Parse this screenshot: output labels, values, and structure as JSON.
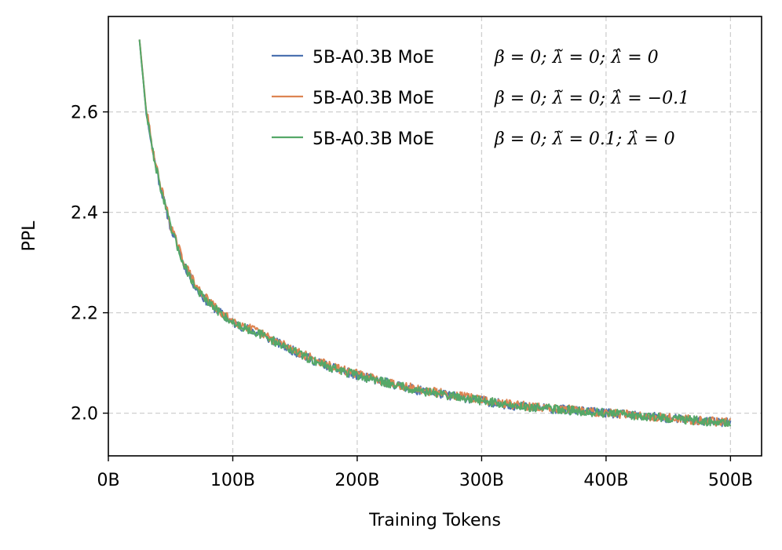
{
  "chart_data": {
    "type": "line",
    "title": "",
    "xlabel": "Training Tokens",
    "ylabel": "PPL",
    "xlim": [
      0,
      525
    ],
    "ylim": [
      1.915,
      2.79
    ],
    "xticks": [
      0,
      100,
      200,
      300,
      400,
      500
    ],
    "xtick_labels": [
      "0B",
      "100B",
      "200B",
      "300B",
      "400B",
      "500B"
    ],
    "yticks": [
      2.0,
      2.2,
      2.4,
      2.6
    ],
    "ytick_labels": [
      "2.0",
      "2.2",
      "2.4",
      "2.6"
    ],
    "grid": true,
    "legend_position": "top-right",
    "series": [
      {
        "name": "5B-A0.3B MoE",
        "legend_math": "β = 0;  λ̃ = 0;  λ̂ = 0",
        "color": "#4c72b0",
        "x": [
          25,
          30,
          35,
          40,
          45,
          50,
          60,
          70,
          80,
          90,
          100,
          120,
          140,
          160,
          180,
          200,
          225,
          250,
          275,
          300,
          325,
          350,
          375,
          400,
          425,
          450,
          475,
          500
        ],
        "y": [
          2.745,
          2.61,
          2.53,
          2.47,
          2.42,
          2.37,
          2.3,
          2.25,
          2.22,
          2.2,
          2.18,
          2.16,
          2.135,
          2.11,
          2.09,
          2.075,
          2.06,
          2.045,
          2.035,
          2.025,
          2.015,
          2.01,
          2.005,
          2.0,
          1.995,
          1.99,
          1.985,
          1.98
        ]
      },
      {
        "name": "5B-A0.3B MoE",
        "legend_math": "β = 0;  λ̃ = 0;  λ̂ = −0.1",
        "color": "#dd8452",
        "x": [
          25,
          30,
          35,
          40,
          45,
          50,
          60,
          70,
          80,
          90,
          100,
          120,
          140,
          160,
          180,
          200,
          225,
          250,
          275,
          300,
          325,
          350,
          375,
          400,
          425,
          450,
          475,
          500
        ],
        "y": [
          2.745,
          2.615,
          2.535,
          2.475,
          2.425,
          2.375,
          2.305,
          2.255,
          2.225,
          2.2,
          2.185,
          2.162,
          2.138,
          2.113,
          2.092,
          2.078,
          2.062,
          2.047,
          2.037,
          2.027,
          2.017,
          2.011,
          2.006,
          2.001,
          1.996,
          1.991,
          1.986,
          1.981
        ]
      },
      {
        "name": "5B-A0.3B MoE",
        "legend_math": "β = 0;  λ̃ = 0.1;  λ̂ = 0",
        "color": "#55a868",
        "x": [
          25,
          30,
          35,
          40,
          45,
          50,
          60,
          70,
          80,
          90,
          100,
          120,
          140,
          160,
          180,
          200,
          225,
          250,
          275,
          300,
          325,
          350,
          375,
          400,
          425,
          450,
          475,
          500
        ],
        "y": [
          2.745,
          2.61,
          2.53,
          2.47,
          2.42,
          2.37,
          2.3,
          2.25,
          2.22,
          2.2,
          2.18,
          2.16,
          2.135,
          2.11,
          2.09,
          2.075,
          2.06,
          2.045,
          2.035,
          2.025,
          2.015,
          2.01,
          2.005,
          2.0,
          1.995,
          1.99,
          1.985,
          1.98
        ]
      }
    ]
  }
}
